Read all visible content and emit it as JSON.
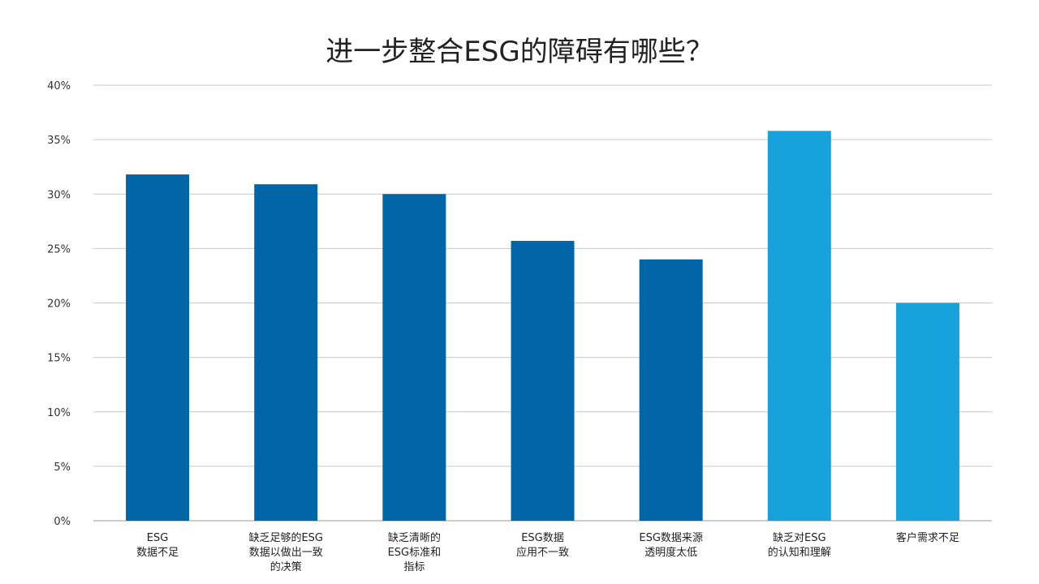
{
  "chart_data": {
    "type": "bar",
    "title": "进一步整合ESG的障碍有哪些？",
    "xlabel": "",
    "ylabel": "",
    "ylim": [
      0,
      40
    ],
    "y_ticks": [
      "0%",
      "5%",
      "10%",
      "15%",
      "20%",
      "25%",
      "30%",
      "35%",
      "40%"
    ],
    "y_tick_values": [
      0,
      5,
      10,
      15,
      20,
      25,
      30,
      35,
      40
    ],
    "grid": true,
    "legend": "none",
    "categories": [
      [
        "ESG",
        "数据不足"
      ],
      [
        "缺乏足够的ESG",
        "数据以做出一致",
        "的决策"
      ],
      [
        "缺乏清晰的",
        "ESG标准和",
        "指标"
      ],
      [
        "ESG数据",
        "应用不一致"
      ],
      [
        "ESG数据来源",
        "透明度太低"
      ],
      [
        "缺乏对ESG",
        "的认知和理解"
      ],
      [
        "客户需求不足"
      ]
    ],
    "values": [
      31.8,
      30.9,
      30.0,
      25.7,
      24.0,
      35.8,
      20.0
    ],
    "bar_colors": [
      "#0066a8",
      "#0066a8",
      "#0066a8",
      "#0066a8",
      "#0066a8",
      "#18a2db",
      "#18a2db"
    ]
  },
  "colors": {
    "grid": "#c8c8c8",
    "axis": "#999999"
  }
}
